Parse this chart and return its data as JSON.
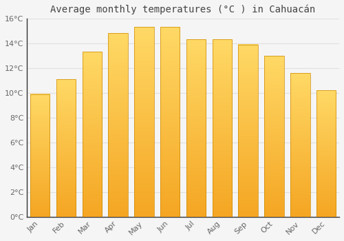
{
  "title": "Average monthly temperatures (°C ) in Cahuacán",
  "months": [
    "Jan",
    "Feb",
    "Mar",
    "Apr",
    "May",
    "Jun",
    "Jul",
    "Aug",
    "Sep",
    "Oct",
    "Nov",
    "Dec"
  ],
  "values": [
    9.9,
    11.1,
    13.3,
    14.8,
    15.3,
    15.3,
    14.3,
    14.3,
    13.9,
    13.0,
    11.6,
    10.2
  ],
  "bar_color_bottom": "#F5A623",
  "bar_color_top": "#FFD966",
  "ylim": [
    0,
    16
  ],
  "yticks": [
    0,
    2,
    4,
    6,
    8,
    10,
    12,
    14,
    16
  ],
  "ytick_labels": [
    "0°C",
    "2°C",
    "4°C",
    "6°C",
    "8°C",
    "10°C",
    "12°C",
    "14°C",
    "16°C"
  ],
  "grid_color": "#e0e0e0",
  "bg_color": "#f5f5f5",
  "title_fontsize": 10,
  "tick_fontsize": 8,
  "bar_width": 0.75,
  "spine_color": "#333333",
  "tick_label_color": "#666666"
}
